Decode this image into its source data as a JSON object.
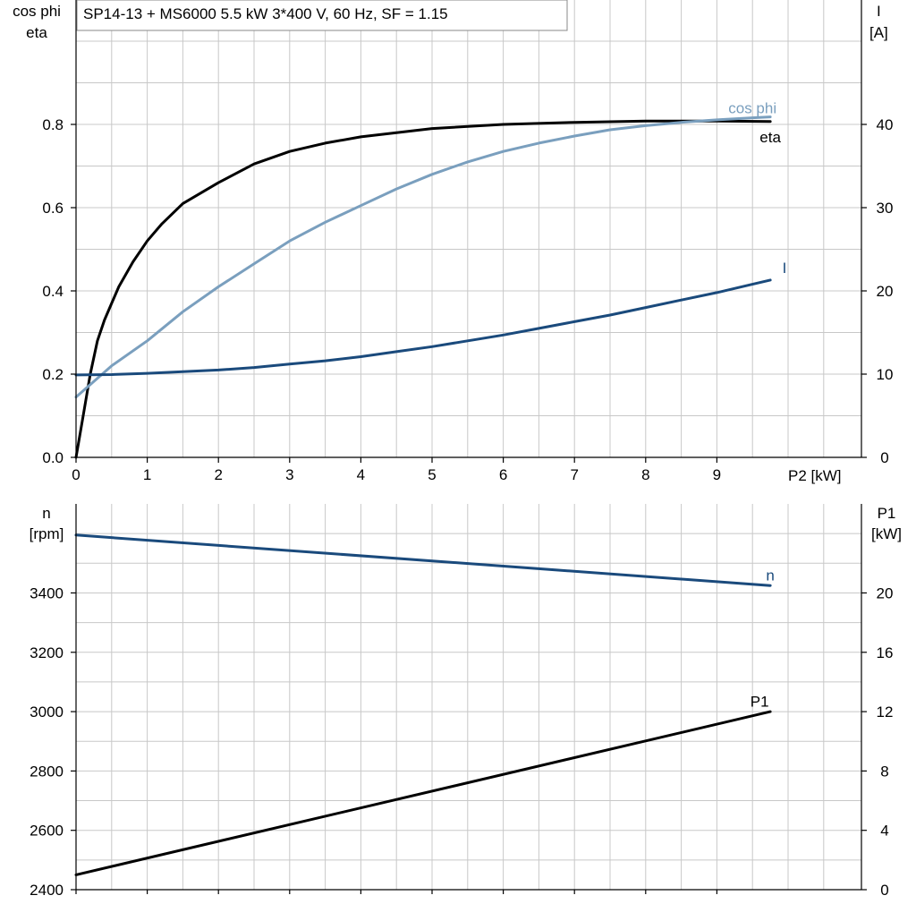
{
  "colors": {
    "eta": "#000000",
    "cos_phi": "#7a9fbe",
    "current": "#1a4a7c",
    "speed": "#1a4a7c",
    "p1": "#000000",
    "grid": "#c8c8c8"
  },
  "chart_data": [
    {
      "type": "line",
      "title": "SP14-13 + MS6000   5.5 kW   3*400 V, 60 Hz, SF = 1.15",
      "xlabel": "P2 [kW]",
      "ylabel_left_line1": "cos phi",
      "ylabel_left_line2": "eta",
      "ylabel_right_line1": "I",
      "ylabel_right_line2": "[A]",
      "xlim": [
        0,
        11
      ],
      "ylim_left": [
        0,
        1.0
      ],
      "ylim_right": [
        0,
        50
      ],
      "x_ticks": [
        "0",
        "1",
        "2",
        "3",
        "4",
        "5",
        "6",
        "7",
        "8",
        "9"
      ],
      "y_left_ticks": [
        "0.0",
        "0.2",
        "0.4",
        "0.6",
        "0.8"
      ],
      "y_right_ticks": [
        "0",
        "10",
        "20",
        "30",
        "40"
      ],
      "grid": true,
      "series": [
        {
          "name": "eta",
          "axis": "left",
          "x": [
            0,
            0.1,
            0.2,
            0.3,
            0.4,
            0.5,
            0.6,
            0.8,
            1.0,
            1.2,
            1.5,
            2.0,
            2.5,
            3.0,
            3.5,
            4.0,
            5.0,
            6.0,
            7.0,
            8.0,
            9.0,
            9.75
          ],
          "y": [
            0.0,
            0.1,
            0.2,
            0.28,
            0.33,
            0.37,
            0.41,
            0.47,
            0.52,
            0.56,
            0.61,
            0.66,
            0.705,
            0.735,
            0.755,
            0.77,
            0.79,
            0.8,
            0.805,
            0.808,
            0.808,
            0.807
          ]
        },
        {
          "name": "cos phi",
          "axis": "left",
          "x": [
            0,
            0.5,
            1.0,
            1.5,
            2.0,
            2.5,
            3.0,
            3.5,
            4.0,
            4.5,
            5.0,
            5.5,
            6.0,
            6.5,
            7.0,
            7.5,
            8.0,
            8.5,
            9.0,
            9.5,
            9.75
          ],
          "y": [
            0.145,
            0.22,
            0.28,
            0.35,
            0.41,
            0.465,
            0.52,
            0.565,
            0.605,
            0.645,
            0.68,
            0.71,
            0.735,
            0.755,
            0.772,
            0.787,
            0.797,
            0.805,
            0.811,
            0.816,
            0.818
          ]
        },
        {
          "name": "I",
          "axis": "right",
          "x": [
            0,
            0.5,
            1.0,
            1.5,
            2.0,
            2.5,
            3.0,
            3.5,
            4.0,
            4.5,
            5.0,
            5.5,
            6.0,
            6.5,
            7.0,
            7.5,
            8.0,
            8.5,
            9.0,
            9.5,
            9.75
          ],
          "y": [
            9.9,
            9.95,
            10.1,
            10.3,
            10.5,
            10.8,
            11.2,
            11.6,
            12.1,
            12.7,
            13.3,
            14.0,
            14.7,
            15.5,
            16.3,
            17.1,
            18.0,
            18.9,
            19.8,
            20.8,
            21.3
          ]
        }
      ],
      "annotations": [
        {
          "text": "cos phi",
          "x": 9.5,
          "y": 0.84
        },
        {
          "text": "eta",
          "x": 9.75,
          "y": 0.77
        },
        {
          "text": "I",
          "x": 9.95,
          "y": 22.8
        }
      ]
    },
    {
      "type": "line",
      "xlim": [
        0,
        11
      ],
      "ylim_left": [
        2400,
        3700
      ],
      "ylim_right": [
        0,
        26
      ],
      "ylabel_left_line1": "n",
      "ylabel_left_line2": "[rpm]",
      "ylabel_right_line1": "P1",
      "ylabel_right_line2": "[kW]",
      "y_left_ticks": [
        "2400",
        "2600",
        "2800",
        "3000",
        "3200",
        "3400"
      ],
      "y_right_ticks": [
        "0",
        "4",
        "8",
        "12",
        "16",
        "20"
      ],
      "grid": true,
      "series": [
        {
          "name": "n",
          "axis": "left",
          "x": [
            0,
            9.75
          ],
          "y": [
            3595,
            3425
          ]
        },
        {
          "name": "P1",
          "axis": "right",
          "x": [
            0,
            9.75
          ],
          "y": [
            1.0,
            12.0
          ]
        }
      ],
      "annotations": [
        {
          "text": "n",
          "x": 9.75,
          "y": 3460
        },
        {
          "text": "P1",
          "x": 9.6,
          "y": 12.7
        }
      ]
    }
  ]
}
